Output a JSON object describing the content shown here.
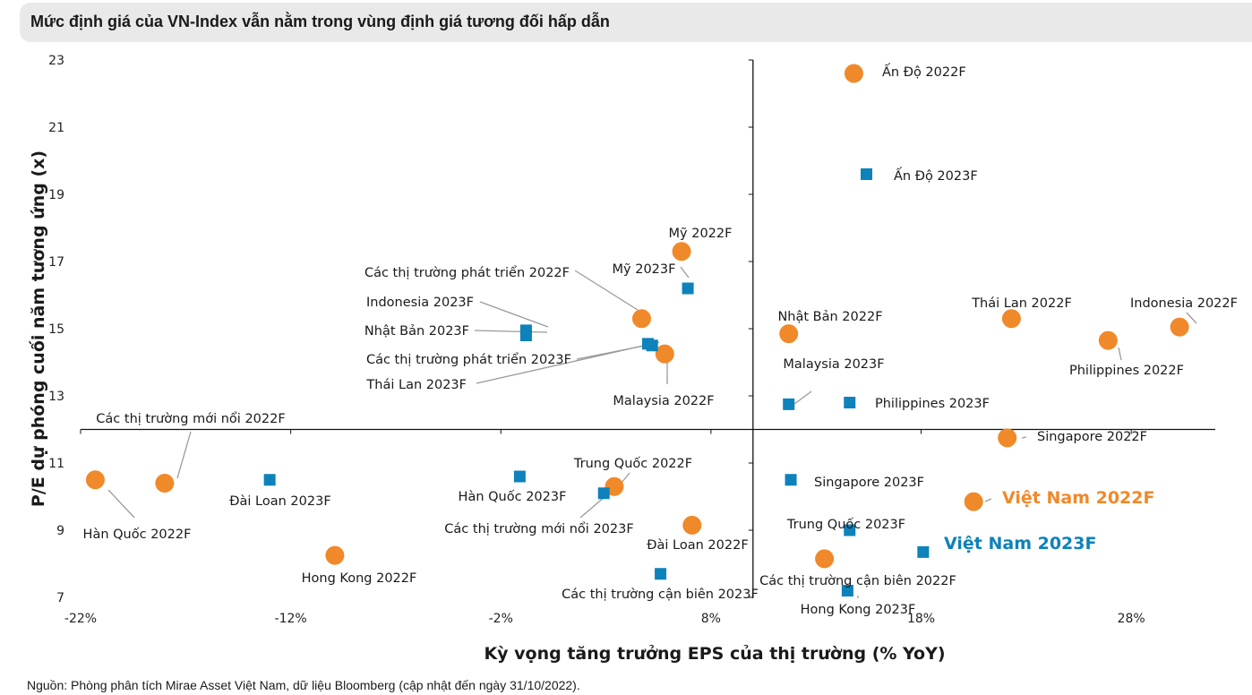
{
  "title": "Mức định giá của VN-Index vẫn nằm trong vùng định giá tương đối hấp dẫn",
  "source": "Nguồn: Phòng phân tích Mirae Asset Việt Nam, dữ liệu Bloomberg (cập nhật đến ngày 31/10/2022).",
  "colors": {
    "orange": "#f0892a",
    "blue": "#0d82bb",
    "axis": "#111111",
    "leader": "#9a9a9a"
  },
  "chart_data": {
    "type": "scatter",
    "title": "Mức định giá của VN-Index vẫn nằm trong vùng định giá tương đối hấp dẫn",
    "xlabel": "Kỳ vọng tăng trưởng EPS của thị trường (% YoY)",
    "ylabel": "P/E dự phóng cuối năm tương ứng (x)",
    "xlim": [
      -22,
      32
    ],
    "ylim": [
      7,
      23
    ],
    "x_crosses_y_at": 12,
    "y_crosses_x_at": 10,
    "x_ticks": [
      -22,
      -12,
      -2,
      8,
      18,
      28
    ],
    "x_tick_labels": [
      "-22%",
      "-12%",
      "-2%",
      "8%",
      "18%",
      "28%"
    ],
    "y_ticks": [
      7,
      9,
      11,
      13,
      15,
      17,
      19,
      21,
      23
    ],
    "y_tick_labels": [
      "7",
      "9",
      "11",
      "13",
      "15",
      "17",
      "19",
      "21",
      "23"
    ],
    "series": [
      {
        "name": "2022F",
        "marker": "circle",
        "color": "#f0892a",
        "points": [
          {
            "label": "Ấn Độ 2022F",
            "x": 14.8,
            "y": 22.6
          },
          {
            "label": "Mỹ 2022F",
            "x": 6.6,
            "y": 17.3
          },
          {
            "label": "Các thị trường phát triển 2022F",
            "x": 4.7,
            "y": 15.3
          },
          {
            "label": "Malaysia 2022F",
            "x": 5.8,
            "y": 14.25
          },
          {
            "label": "Nhật Bản 2022F",
            "x": 11.7,
            "y": 14.85
          },
          {
            "label": "Thái Lan 2022F",
            "x": 22.3,
            "y": 15.3
          },
          {
            "label": "Indonesia 2022F",
            "x": 30.3,
            "y": 15.05
          },
          {
            "label": "Philippines 2022F",
            "x": 26.9,
            "y": 14.65
          },
          {
            "label": "Singapore 2022F",
            "x": 22.1,
            "y": 11.75
          },
          {
            "label": "Việt Nam 2022F",
            "x": 20.5,
            "y": 9.85
          },
          {
            "label": "Trung Quốc 2022F",
            "x": 3.4,
            "y": 10.3
          },
          {
            "label": "Đài Loan 2022F",
            "x": 7.1,
            "y": 9.15
          },
          {
            "label": "Các thị trường cận biên 2022F",
            "x": 13.4,
            "y": 8.15
          },
          {
            "label": "Hàn Quốc 2022F",
            "x": -21.3,
            "y": 10.5
          },
          {
            "label": "Các thị trường mới nổi 2022F",
            "x": -18.0,
            "y": 10.4
          },
          {
            "label": "Hong Kong 2022F",
            "x": -9.9,
            "y": 8.25
          }
        ]
      },
      {
        "name": "2023F",
        "marker": "square",
        "color": "#0d82bb",
        "points": [
          {
            "label": "Ấn Độ 2023F",
            "x": 15.4,
            "y": 19.6
          },
          {
            "label": "Mỹ 2023F",
            "x": 6.9,
            "y": 16.2
          },
          {
            "label": "Indonesia 2023F",
            "x": -0.8,
            "y": 14.95
          },
          {
            "label": "Nhật Bản 2023F",
            "x": -0.8,
            "y": 14.8
          },
          {
            "label": "Các thị trường phát triển 2023F",
            "x": 5.0,
            "y": 14.55
          },
          {
            "label": "Thái Lan 2023F",
            "x": 5.2,
            "y": 14.5
          },
          {
            "label": "Malaysia 2023F",
            "x": 11.7,
            "y": 12.75
          },
          {
            "label": "Philippines 2023F",
            "x": 14.6,
            "y": 12.8
          },
          {
            "label": "Singapore 2023F",
            "x": 11.8,
            "y": 10.5
          },
          {
            "label": "Trung Quốc 2023F",
            "x": 14.6,
            "y": 9.0
          },
          {
            "label": "Việt Nam 2023F",
            "x": 18.1,
            "y": 8.35
          },
          {
            "label": "Hong Kong 2023F",
            "x": 14.5,
            "y": 7.2
          },
          {
            "label": "Đài Loan 2023F",
            "x": -13.0,
            "y": 10.5
          },
          {
            "label": "Hàn Quốc 2023F",
            "x": -1.1,
            "y": 10.6
          },
          {
            "label": "Các thị trường mới nổi 2023F",
            "x": 2.9,
            "y": 10.1
          },
          {
            "label": "Các thị trường cận biên 2023F",
            "x": 5.6,
            "y": 7.7
          }
        ]
      }
    ]
  }
}
